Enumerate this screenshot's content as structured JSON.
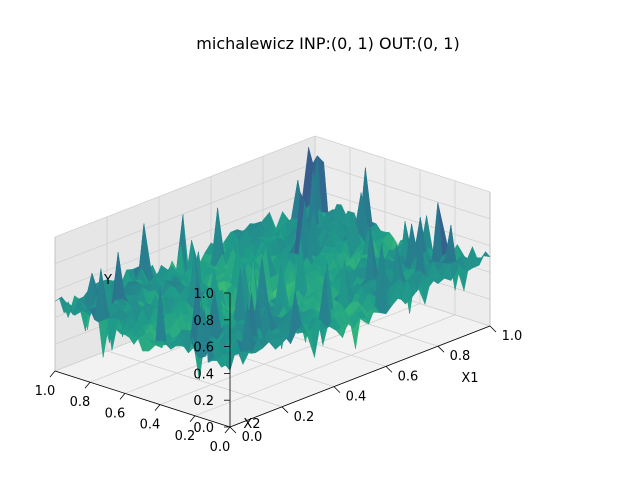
{
  "chart_data": {
    "type": "surface3d",
    "title": "michalewicz  INP:(0, 1)  OUT:(0, 1)",
    "function": "michalewicz",
    "colormap": "viridis",
    "x1": {
      "label": "X1",
      "range": [
        0,
        1
      ],
      "ticks": [
        "0.0",
        "0.2",
        "0.4",
        "0.6",
        "0.8",
        "1.0"
      ]
    },
    "x2": {
      "label": "X2",
      "range": [
        0,
        1
      ],
      "ticks": [
        "0.0",
        "0.2",
        "0.4",
        "0.6",
        "0.8",
        "1.0"
      ]
    },
    "y": {
      "label": "Y",
      "range": [
        0,
        1
      ],
      "ticks": [
        "0.0",
        "0.2",
        "0.4",
        "0.6",
        "0.8",
        "1.0"
      ]
    },
    "grid": true,
    "legend": "none"
  }
}
